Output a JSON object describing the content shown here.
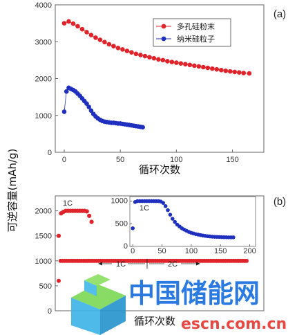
{
  "chart_data": [
    {
      "panel": "(a)",
      "type": "scatter",
      "xlabel": "循环次数",
      "ylabel": "可逆容量(mAh/g)",
      "xlim": [
        -8,
        178
      ],
      "ylim": [
        0,
        4000
      ],
      "xticks": [
        0,
        50,
        100,
        150
      ],
      "yticks": [
        0,
        1000,
        2000,
        3000,
        4000
      ],
      "legend_position": "top-right",
      "series": [
        {
          "name": "多孔硅粉末",
          "color": "#e0242b",
          "x": [
            0,
            4,
            8,
            12,
            16,
            20,
            24,
            28,
            32,
            36,
            40,
            44,
            48,
            52,
            56,
            60,
            64,
            68,
            72,
            76,
            80,
            84,
            88,
            92,
            96,
            100,
            104,
            108,
            112,
            116,
            120,
            124,
            128,
            132,
            136,
            140,
            144,
            148,
            152,
            156,
            160,
            165
          ],
          "y": [
            3500,
            3550,
            3490,
            3420,
            3340,
            3260,
            3180,
            3110,
            3050,
            2990,
            2930,
            2880,
            2830,
            2790,
            2750,
            2710,
            2670,
            2640,
            2610,
            2580,
            2550,
            2520,
            2500,
            2470,
            2450,
            2430,
            2410,
            2390,
            2370,
            2350,
            2330,
            2310,
            2290,
            2270,
            2250,
            2230,
            2210,
            2195,
            2180,
            2165,
            2150,
            2140
          ]
        },
        {
          "name": "纳米硅粒子",
          "color": "#1f2fbf",
          "x": [
            0,
            2,
            4,
            6,
            8,
            10,
            12,
            14,
            16,
            18,
            20,
            22,
            24,
            26,
            28,
            30,
            32,
            34,
            36,
            38,
            40,
            42,
            44,
            46,
            48,
            50,
            52,
            54,
            56,
            58,
            60,
            62,
            64,
            66,
            68,
            70
          ],
          "y": [
            1100,
            1650,
            1750,
            1720,
            1690,
            1650,
            1590,
            1530,
            1460,
            1390,
            1320,
            1230,
            1130,
            1040,
            970,
            920,
            880,
            850,
            830,
            820,
            810,
            800,
            800,
            790,
            780,
            780,
            770,
            760,
            750,
            740,
            730,
            720,
            710,
            700,
            690,
            680
          ]
        }
      ]
    },
    {
      "panel": "(b)",
      "type": "scatter",
      "xlabel": "循环次数",
      "ylim": [
        0,
        2300
      ],
      "yticks": [
        0,
        500,
        1000,
        1500,
        2000
      ],
      "annotations": {
        "top": "1C",
        "left_arrow": "1C",
        "right_arrow": "2C"
      },
      "series": [
        {
          "name": "",
          "color": "#e0242b",
          "x": [
            0,
            1,
            2,
            3,
            4,
            5,
            6,
            7,
            8,
            9,
            10,
            11,
            12,
            13,
            14
          ],
          "y": [
            1500,
            1950,
            1980,
            2000,
            2000,
            2000,
            2000,
            2000,
            2000,
            2000,
            2000,
            2000,
            1990,
            1900,
            1780
          ]
        },
        {
          "name": "",
          "color": "#e0242b",
          "x": [
            0,
            1,
            2,
            3,
            4,
            5,
            6,
            7,
            8,
            9,
            10,
            11,
            12,
            13,
            14,
            15,
            16,
            17,
            18,
            19,
            20,
            21,
            22,
            23,
            24,
            25,
            26,
            27,
            28,
            29,
            30,
            31,
            32,
            33,
            34,
            35,
            36,
            37,
            38,
            39,
            40,
            41,
            42,
            43,
            44,
            45,
            46,
            47,
            48,
            49,
            50,
            51,
            52,
            53,
            54,
            55,
            56,
            57,
            58,
            59,
            60,
            61,
            62,
            63,
            64,
            65,
            66,
            67,
            68,
            69,
            70,
            71,
            72,
            73,
            74,
            75,
            76,
            77,
            78,
            79,
            80,
            81,
            82,
            83,
            84,
            85,
            86,
            87,
            88,
            89,
            90,
            91,
            92,
            93,
            94,
            95,
            96,
            97,
            98,
            99
          ],
          "y": [
            600,
            1000,
            1000,
            1000,
            1000,
            1000,
            1000,
            1000,
            1000,
            1000,
            1000,
            1000,
            1000,
            1000,
            1000,
            1000,
            1000,
            1000,
            1000,
            1000,
            1000,
            1000,
            1000,
            1000,
            1000,
            1000,
            1000,
            1000,
            1000,
            1000,
            1000,
            1000,
            1000,
            1000,
            1000,
            1000,
            1000,
            1000,
            1000,
            1000,
            1000,
            1000,
            1000,
            1000,
            1000,
            1000,
            1000,
            1000,
            1000,
            1000,
            1000,
            1000,
            1000,
            1000,
            1000,
            1000,
            1000,
            1000,
            1000,
            1000,
            1000,
            1000,
            1000,
            1000,
            1000,
            1000,
            1000,
            1000,
            1000,
            1000,
            1000,
            1000,
            1000,
            1000,
            1000,
            1000,
            1000,
            1000,
            1000,
            1000,
            1000,
            1000,
            1000,
            1000,
            1000,
            1000,
            1000,
            1000,
            1000,
            1000,
            1000,
            1000,
            1000,
            1000,
            1000,
            1000,
            1000,
            1000,
            1000,
            1000
          ]
        }
      ]
    },
    {
      "panel": "(b) inset",
      "type": "scatter",
      "annotation": "1C",
      "xlim": [
        -5,
        210
      ],
      "ylim": [
        0,
        1100
      ],
      "xticks": [
        0,
        50,
        100,
        150,
        200
      ],
      "yticks": [
        0,
        500,
        1000
      ],
      "series": [
        {
          "name": "",
          "color": "#1f2fbf",
          "x": [
            0,
            4,
            8,
            12,
            16,
            20,
            24,
            28,
            32,
            36,
            40,
            44,
            48,
            52,
            56,
            60,
            64,
            68,
            72,
            76,
            80,
            84,
            88,
            92,
            96,
            100,
            104,
            108,
            112,
            116,
            120,
            124,
            128,
            132,
            136,
            140,
            144,
            148,
            152,
            156,
            160,
            164,
            168,
            172
          ],
          "y": [
            400,
            980,
            1000,
            1000,
            1000,
            1000,
            1000,
            1000,
            1000,
            1000,
            1000,
            1000,
            990,
            960,
            890,
            800,
            700,
            610,
            540,
            480,
            440,
            400,
            370,
            345,
            320,
            300,
            285,
            270,
            260,
            250,
            240,
            232,
            225,
            220,
            215,
            212,
            210,
            208,
            205,
            203,
            202,
            200,
            200,
            200
          ]
        }
      ]
    }
  ],
  "watermark": {
    "cn": "中国储能网",
    "url": "escn.com.cn",
    "colors": {
      "cube_top": "#7ed957",
      "cube_side": "#3fb5e8",
      "text_blue": "#1a6fe0",
      "url_red": "#e53935"
    }
  }
}
